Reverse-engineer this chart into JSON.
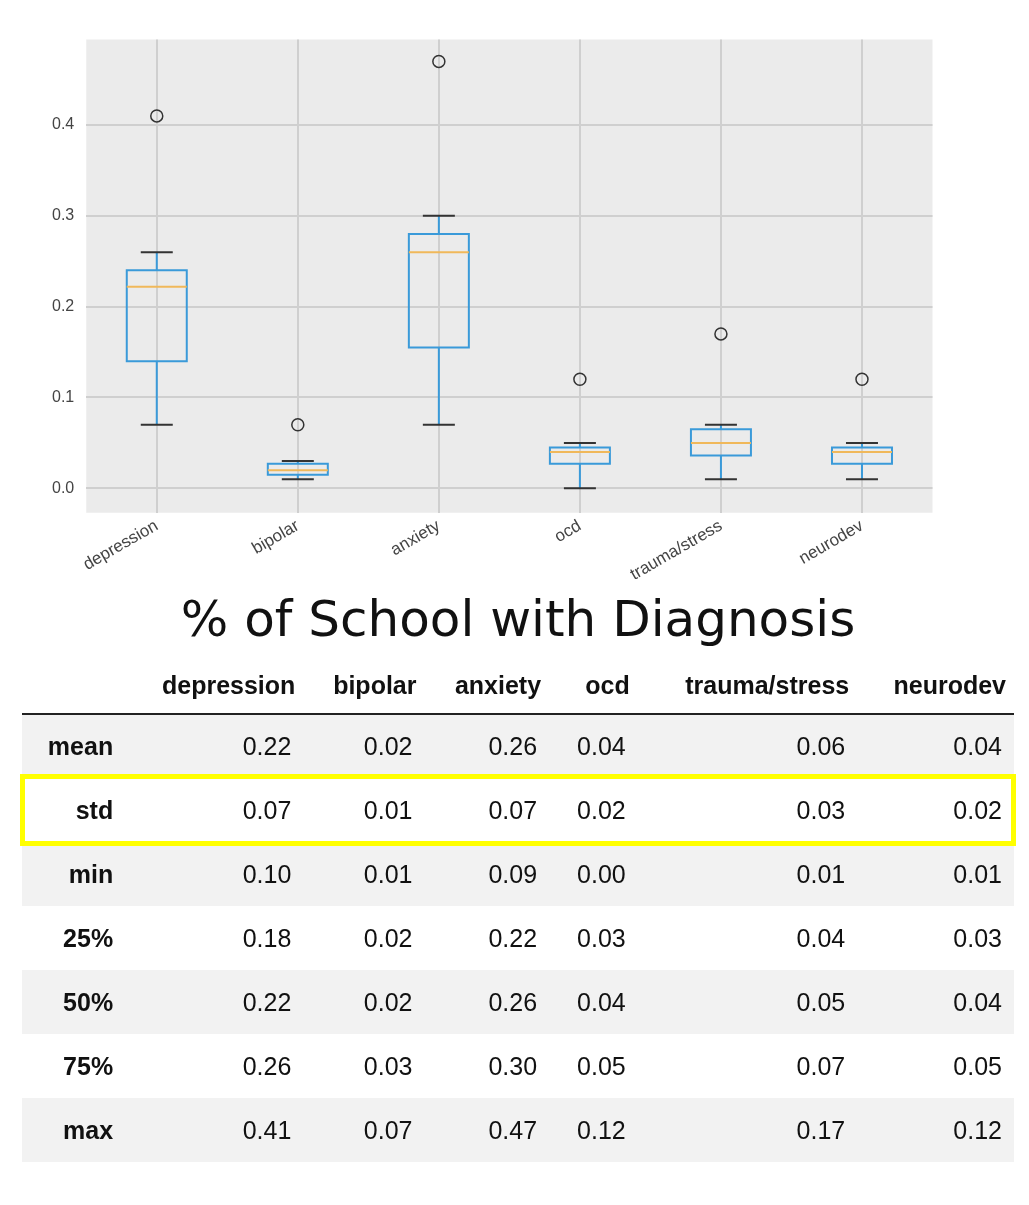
{
  "chart_data": [
    {
      "type": "box",
      "categories": [
        "depression",
        "bipolar",
        "anxiety",
        "ocd",
        "trauma/stress",
        "neurodev"
      ],
      "color": "#3a9ad9",
      "ylim": [
        -0.027,
        0.494
      ],
      "yticks": [
        {
          "value": 0,
          "label": "0.0"
        },
        {
          "value": 0.1,
          "label": "0.1"
        },
        {
          "value": 0.2,
          "label": "0.2"
        },
        {
          "value": 0.3,
          "label": "0.3"
        },
        {
          "value": 0.4,
          "label": "0.4"
        }
      ],
      "grid": true,
      "boxes": [
        {
          "low": 0.07,
          "q1": 0.14,
          "median": 0.222,
          "q3": 0.24,
          "high": 0.26,
          "outliers": [
            0.41
          ]
        },
        {
          "low": 0.01,
          "q1": 0.015,
          "median": 0.02,
          "q3": 0.027,
          "high": 0.03,
          "outliers": [
            0.07
          ]
        },
        {
          "low": 0.07,
          "q1": 0.155,
          "median": 0.26,
          "q3": 0.28,
          "high": 0.3,
          "outliers": [
            0.47
          ]
        },
        {
          "low": 0,
          "q1": 0.027,
          "median": 0.04,
          "q3": 0.045,
          "high": 0.05,
          "outliers": [
            0.12
          ]
        },
        {
          "low": 0.01,
          "q1": 0.036,
          "median": 0.05,
          "q3": 0.065,
          "high": 0.07,
          "outliers": [
            0.17
          ]
        },
        {
          "low": 0.01,
          "q1": 0.027,
          "median": 0.04,
          "q3": 0.045,
          "high": 0.05,
          "outliers": [
            0.12
          ]
        }
      ]
    },
    {
      "type": "heatmap",
      "title": "% of School with Diagnosis",
      "categories": [
        "depression",
        "bipolar",
        "anxiety",
        "ocd",
        "trauma/stress",
        "neurodev"
      ],
      "y_categories": [
        "mean",
        "std",
        "min",
        "25%",
        "50%",
        "75%",
        "max"
      ],
      "data_labels": true,
      "cells": [
        [
          0.22,
          0.02,
          0.26,
          0.04,
          0.06,
          0.04
        ],
        [
          0.07,
          0.01,
          0.07,
          0.02,
          0.03,
          0.02
        ],
        [
          0.1,
          0.01,
          0.09,
          0.0,
          0.01,
          0.01
        ],
        [
          0.18,
          0.02,
          0.22,
          0.03,
          0.04,
          0.03
        ],
        [
          0.22,
          0.02,
          0.26,
          0.04,
          0.05,
          0.04
        ],
        [
          0.26,
          0.03,
          0.3,
          0.05,
          0.07,
          0.05
        ],
        [
          0.41,
          0.07,
          0.47,
          0.12,
          0.17,
          0.12
        ]
      ],
      "cell_labels": [
        [
          "0.22",
          "0.02",
          "0.26",
          "0.04",
          "0.06",
          "0.04"
        ],
        [
          "0.07",
          "0.01",
          "0.07",
          "0.02",
          "0.03",
          "0.02"
        ],
        [
          "0.10",
          "0.01",
          "0.09",
          "0.00",
          "0.01",
          "0.01"
        ],
        [
          "0.18",
          "0.02",
          "0.22",
          "0.03",
          "0.04",
          "0.03"
        ],
        [
          "0.22",
          "0.02",
          "0.26",
          "0.04",
          "0.05",
          "0.04"
        ],
        [
          "0.26",
          "0.03",
          "0.30",
          "0.05",
          "0.07",
          "0.05"
        ],
        [
          "0.41",
          "0.07",
          "0.47",
          "0.12",
          "0.17",
          "0.12"
        ]
      ]
    }
  ]
}
